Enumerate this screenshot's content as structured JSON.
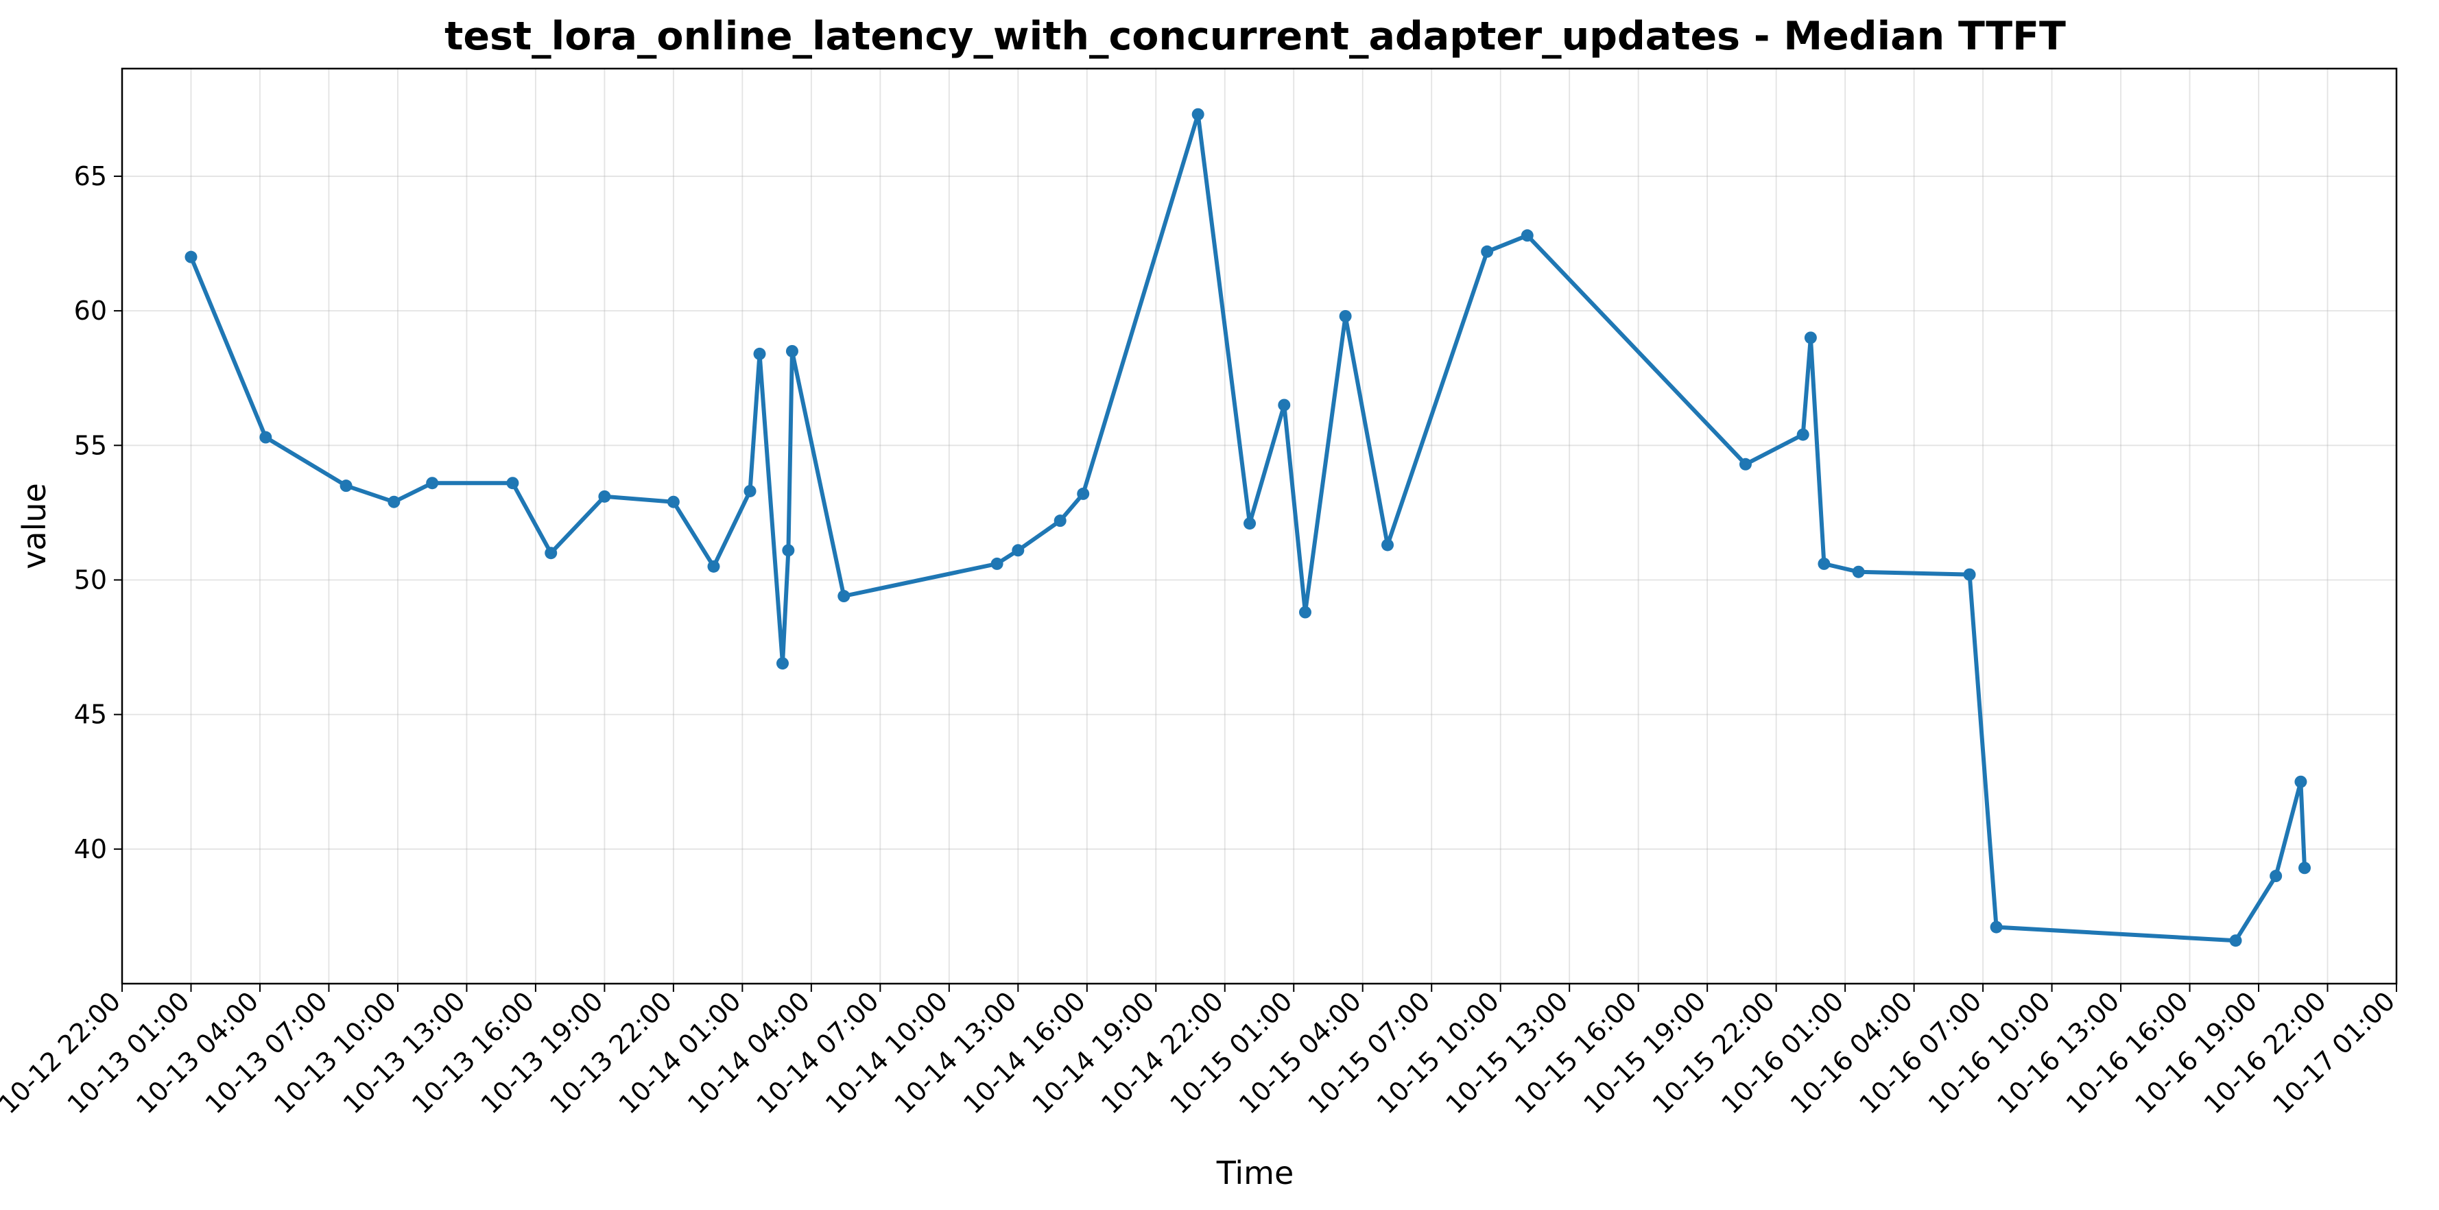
{
  "chart_data": {
    "type": "line",
    "title": "test_lora_online_latency_with_concurrent_adapter_updates - Median TTFT",
    "xlabel": "Time",
    "ylabel": "value",
    "color": "#1f77b4",
    "grid": true,
    "xlim": [
      "10-12 22:00",
      "10-17 01:00"
    ],
    "ylim": [
      35,
      69
    ],
    "x_ticks": [
      "10-12 22:00",
      "10-13 01:00",
      "10-13 04:00",
      "10-13 07:00",
      "10-13 10:00",
      "10-13 13:00",
      "10-13 16:00",
      "10-13 19:00",
      "10-13 22:00",
      "10-14 01:00",
      "10-14 04:00",
      "10-14 07:00",
      "10-14 10:00",
      "10-14 13:00",
      "10-14 16:00",
      "10-14 19:00",
      "10-14 22:00",
      "10-15 01:00",
      "10-15 04:00",
      "10-15 07:00",
      "10-15 10:00",
      "10-15 13:00",
      "10-15 16:00",
      "10-15 19:00",
      "10-15 22:00",
      "10-16 01:00",
      "10-16 04:00",
      "10-16 07:00",
      "10-16 10:00",
      "10-16 13:00",
      "10-16 16:00",
      "10-16 19:00",
      "10-16 22:00",
      "10-17 01:00"
    ],
    "y_ticks": [
      40,
      45,
      50,
      55,
      60,
      65
    ],
    "series": [
      {
        "points": [
          {
            "x": "10-13 01:00",
            "y": 62.0
          },
          {
            "x": "10-13 04:15",
            "y": 55.3
          },
          {
            "x": "10-13 07:45",
            "y": 53.5
          },
          {
            "x": "10-13 09:50",
            "y": 52.9
          },
          {
            "x": "10-13 11:30",
            "y": 53.6
          },
          {
            "x": "10-13 15:00",
            "y": 53.6
          },
          {
            "x": "10-13 16:40",
            "y": 51.0
          },
          {
            "x": "10-13 19:00",
            "y": 53.1
          },
          {
            "x": "10-13 22:00",
            "y": 52.9
          },
          {
            "x": "10-13 23:45",
            "y": 50.5
          },
          {
            "x": "10-14 01:20",
            "y": 53.3
          },
          {
            "x": "10-14 01:45",
            "y": 58.4
          },
          {
            "x": "10-14 02:45",
            "y": 46.9
          },
          {
            "x": "10-14 03:00",
            "y": 51.1
          },
          {
            "x": "10-14 03:10",
            "y": 58.5
          },
          {
            "x": "10-14 05:25",
            "y": 49.4
          },
          {
            "x": "10-14 12:05",
            "y": 50.6
          },
          {
            "x": "10-14 13:00",
            "y": 51.1
          },
          {
            "x": "10-14 14:50",
            "y": 52.2
          },
          {
            "x": "10-14 15:50",
            "y": 53.2
          },
          {
            "x": "10-14 20:50",
            "y": 67.3
          },
          {
            "x": "10-14 23:05",
            "y": 52.1
          },
          {
            "x": "10-15 00:35",
            "y": 56.5
          },
          {
            "x": "10-15 01:30",
            "y": 48.8
          },
          {
            "x": "10-15 03:15",
            "y": 59.8
          },
          {
            "x": "10-15 05:05",
            "y": 51.3
          },
          {
            "x": "10-15 09:25",
            "y": 62.2
          },
          {
            "x": "10-15 11:10",
            "y": 62.8
          },
          {
            "x": "10-15 20:40",
            "y": 54.3
          },
          {
            "x": "10-15 23:10",
            "y": 55.4
          },
          {
            "x": "10-15 23:30",
            "y": 59.0
          },
          {
            "x": "10-16 00:05",
            "y": 50.6
          },
          {
            "x": "10-16 01:35",
            "y": 50.3
          },
          {
            "x": "10-16 06:25",
            "y": 50.2
          },
          {
            "x": "10-16 07:35",
            "y": 37.1
          },
          {
            "x": "10-16 18:00",
            "y": 36.6
          },
          {
            "x": "10-16 19:45",
            "y": 39.0
          },
          {
            "x": "10-16 20:50",
            "y": 42.5
          },
          {
            "x": "10-16 21:00",
            "y": 39.3
          }
        ]
      }
    ]
  }
}
